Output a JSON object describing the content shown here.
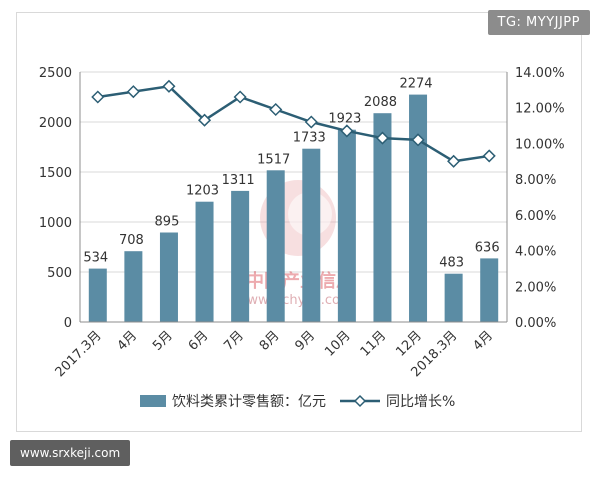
{
  "watermark_top": "TG: MYYJJPP",
  "watermark_bottom": "www.srxkeji.com",
  "watermark_center": {
    "cn": "中国产业信息",
    "url": "www.chyxx.com"
  },
  "colors": {
    "bar": "#5b8ca4",
    "line": "#2c5e74",
    "marker_fill": "#ffffff",
    "grid": "#d9d9d9"
  },
  "chart_data": {
    "type": "bar",
    "categories": [
      "2017.3月",
      "4月",
      "5月",
      "6月",
      "7月",
      "8月",
      "9月",
      "10月",
      "11月",
      "12月",
      "2018.3月",
      "4月"
    ],
    "series": [
      {
        "name": "饮料类累计零售额：亿元",
        "type": "bar",
        "axis": "left",
        "values": [
          534,
          708,
          895,
          1203,
          1311,
          1517,
          1733,
          1923,
          2088,
          2274,
          483,
          636
        ]
      },
      {
        "name": "同比增长%",
        "type": "line",
        "axis": "right",
        "values": [
          12.6,
          12.9,
          13.2,
          11.3,
          12.6,
          11.9,
          11.2,
          10.7,
          10.3,
          10.2,
          9.0,
          9.3
        ]
      }
    ],
    "ylim": [
      0,
      2500
    ],
    "yticks": [
      0,
      500,
      1000,
      1500,
      2000,
      2500
    ],
    "y2lim": [
      0,
      14
    ],
    "y2ticks": [
      "0.00%",
      "2.00%",
      "4.00%",
      "6.00%",
      "8.00%",
      "10.00%",
      "12.00%",
      "14.00%"
    ],
    "grid": true,
    "legend": "bottom"
  }
}
